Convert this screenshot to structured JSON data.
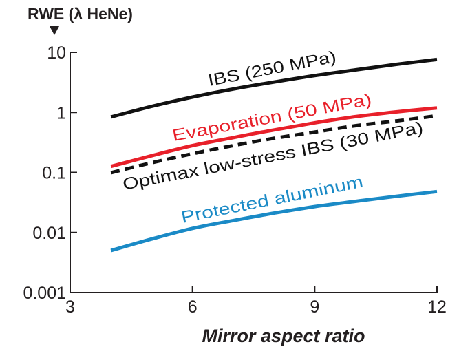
{
  "chart_data": {
    "type": "line",
    "title": "",
    "ylabel": "RWE (λ HeNe)",
    "xlabel": "Mirror aspect ratio",
    "xlim": [
      3,
      12
    ],
    "ylim": [
      0.001,
      10
    ],
    "yscale": "log",
    "grid": false,
    "x_ticks": [
      "3",
      "6",
      "9",
      "12"
    ],
    "x_tick_values": [
      3,
      6,
      9,
      12
    ],
    "y_ticks": [
      "0.001",
      "0.01",
      "0.1",
      "1",
      "10"
    ],
    "y_tick_values": [
      0.001,
      0.01,
      0.1,
      1,
      10
    ],
    "x": [
      4,
      5,
      6,
      7,
      8,
      9,
      10,
      11,
      12
    ],
    "series": [
      {
        "name": "IBS (250 MPa)",
        "color": "#111111",
        "dashed": false,
        "values": [
          0.84,
          1.26,
          1.8,
          2.45,
          3.2,
          4.1,
          5.1,
          6.3,
          7.6
        ]
      },
      {
        "name": "Evaporation (50 MPa)",
        "color": "#e8202a",
        "dashed": false,
        "values": [
          0.126,
          0.19,
          0.28,
          0.38,
          0.51,
          0.67,
          0.85,
          1.02,
          1.19
        ]
      },
      {
        "name": "Optimax low-stress IBS (30 MPa)",
        "color": "#111111",
        "dashed": true,
        "values": [
          0.099,
          0.145,
          0.205,
          0.28,
          0.37,
          0.47,
          0.6,
          0.72,
          0.88
        ]
      },
      {
        "name": "Protected aluminum",
        "color": "#1a8ac6",
        "dashed": false,
        "values": [
          0.005,
          0.0078,
          0.0117,
          0.0158,
          0.021,
          0.027,
          0.033,
          0.04,
          0.048
        ]
      }
    ]
  }
}
